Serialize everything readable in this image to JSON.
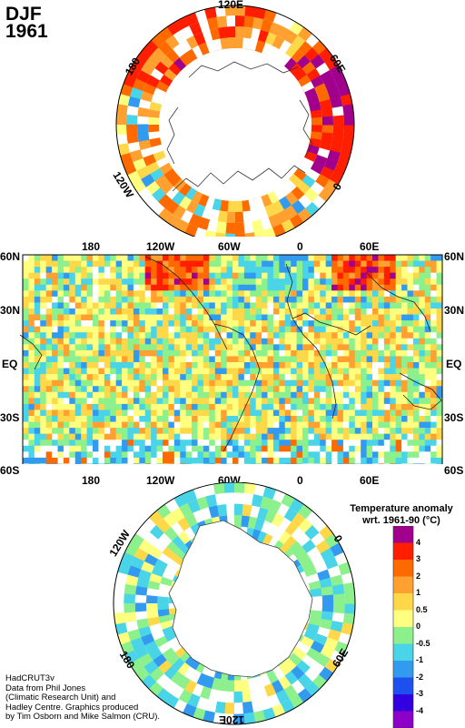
{
  "header": {
    "season": "DJF",
    "year": "1961"
  },
  "north_polar": {
    "lon_labels": [
      "120E",
      "180",
      "60E",
      "120W",
      "0"
    ]
  },
  "world_map": {
    "top_lon_labels": [
      "180",
      "120W",
      "60W",
      "0",
      "60E"
    ],
    "bottom_lon_labels": [
      "180",
      "120W",
      "60W",
      "0",
      "60E"
    ],
    "lat_labels_left": [
      "60N",
      "30N",
      "EQ",
      "30S",
      "60S"
    ],
    "lat_labels_right": [
      "60N",
      "30N",
      "EQ",
      "30S",
      "60S"
    ]
  },
  "south_polar": {
    "lon_labels": [
      "120W",
      "0",
      "180",
      "60E",
      "120E"
    ]
  },
  "legend": {
    "title_line1": "Temperature anomaly",
    "title_line2": "wrt. 1961-90  (°C)",
    "ticks": [
      "4",
      "3",
      "2",
      "1",
      "0.5",
      "0",
      "-0.5",
      "-1",
      "-2",
      "-3",
      "-4"
    ],
    "colors": [
      "#a0008c",
      "#ff1e00",
      "#ff6a00",
      "#ffa030",
      "#ffd84a",
      "#ffff80",
      "#8cf08c",
      "#4ad4e8",
      "#329bf0",
      "#1e50f0",
      "#3200e0",
      "#8c00c8"
    ]
  },
  "credit": {
    "line1": "HadCRUT3v",
    "line2": "Data from Phil Jones",
    "line3": "(Climatic Research Unit) and",
    "line4": "Hadley Centre.  Graphics produced",
    "line5": "by Tim Osborn and Mike Salmon (CRU)."
  }
}
